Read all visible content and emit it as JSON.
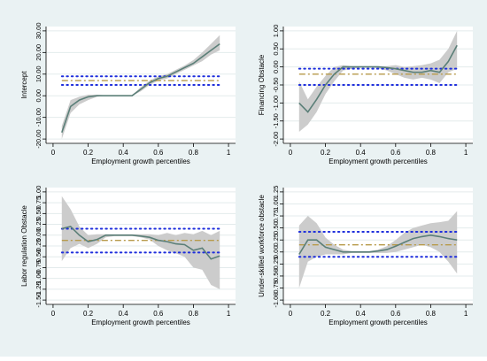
{
  "chart_data": [
    {
      "type": "line",
      "title": "",
      "xlabel": "Employment growth percentiles",
      "ylabel": "Intercept",
      "xlim": [
        0,
        1
      ],
      "ylim": [
        -20,
        30
      ],
      "xticks": [
        0,
        0.2,
        0.4,
        0.6,
        0.8,
        1
      ],
      "xtick_labels": [
        "0",
        "0.2",
        "0.4",
        "0.6",
        "0.8",
        "1"
      ],
      "yticks": [
        -20,
        -10,
        0,
        10,
        20,
        30
      ],
      "ytick_labels": [
        "-20.00",
        "-10.00",
        "0.00",
        "10.00",
        "20.00",
        "30.00"
      ],
      "x": [
        0.05,
        0.1,
        0.15,
        0.2,
        0.25,
        0.3,
        0.35,
        0.4,
        0.45,
        0.5,
        0.55,
        0.6,
        0.65,
        0.7,
        0.75,
        0.8,
        0.85,
        0.9,
        0.95
      ],
      "estimate": [
        -17,
        -5,
        -2,
        -0.5,
        0,
        0,
        0,
        0,
        0,
        3,
        6,
        8,
        9,
        11,
        13,
        15,
        18,
        21,
        24
      ],
      "ci_lower": [
        -20,
        -8,
        -4,
        -2,
        -0.5,
        0,
        0,
        0,
        0,
        2,
        5,
        7,
        8,
        10,
        12,
        14,
        16,
        19,
        21
      ],
      "ci_upper": [
        -14,
        -2,
        -0.5,
        0.5,
        0.5,
        0.2,
        0.2,
        0.2,
        0.2,
        4,
        7,
        9,
        10,
        12,
        14,
        16.5,
        20,
        24,
        28
      ],
      "ols_estimate": 7,
      "ols_lower": 5,
      "ols_upper": 9,
      "grid": true
    },
    {
      "type": "line",
      "title": "",
      "xlabel": "Employment growth percentiles",
      "ylabel": "Financing Obstacle",
      "xlim": [
        0,
        1
      ],
      "ylim": [
        -2,
        1
      ],
      "xticks": [
        0,
        0.2,
        0.4,
        0.6,
        0.8,
        1
      ],
      "xtick_labels": [
        "0",
        "0.2",
        "0.4",
        "0.6",
        "0.8",
        "1"
      ],
      "yticks": [
        -2,
        -1.5,
        -1,
        -0.5,
        0,
        0.5,
        1
      ],
      "ytick_labels": [
        "-2.00",
        "-1.50",
        "-1.00",
        "-0.50",
        "0.00",
        "0.50",
        "1.00"
      ],
      "x": [
        0.05,
        0.1,
        0.15,
        0.2,
        0.25,
        0.3,
        0.35,
        0.4,
        0.45,
        0.5,
        0.55,
        0.6,
        0.65,
        0.7,
        0.75,
        0.8,
        0.85,
        0.9,
        0.95
      ],
      "estimate": [
        -1.0,
        -1.25,
        -0.9,
        -0.5,
        -0.2,
        0,
        0,
        0,
        0,
        0,
        -0.02,
        -0.05,
        -0.1,
        -0.15,
        -0.15,
        -0.1,
        -0.15,
        0.15,
        0.6
      ],
      "ci_lower": [
        -1.8,
        -1.6,
        -1.25,
        -0.75,
        -0.4,
        -0.1,
        -0.05,
        -0.02,
        -0.02,
        -0.03,
        -0.1,
        -0.2,
        -0.3,
        -0.35,
        -0.3,
        -0.35,
        -0.45,
        -0.15,
        -0.05
      ],
      "ci_upper": [
        -0.4,
        -0.9,
        -0.55,
        -0.25,
        0,
        0.05,
        0.02,
        0.02,
        0.02,
        0.02,
        0.02,
        0.05,
        0,
        0.02,
        0.05,
        0.1,
        0.2,
        0.5,
        1.0
      ],
      "ols_estimate": -0.2,
      "ols_lower": -0.5,
      "ols_upper": -0.05,
      "grid": true
    },
    {
      "type": "line",
      "title": "",
      "xlabel": "Employment growth percentiles",
      "ylabel": "Labor regulation Obstacle",
      "xlim": [
        0,
        1
      ],
      "ylim": [
        -1.5,
        1
      ],
      "xticks": [
        0,
        0.2,
        0.4,
        0.6,
        0.8,
        1
      ],
      "xtick_labels": [
        "0",
        "0.2",
        "0.4",
        "0.6",
        "0.8",
        "1"
      ],
      "yticks": [
        -1.5,
        -1.25,
        -1,
        -0.75,
        -0.5,
        -0.25,
        0,
        0.25,
        0.5,
        0.75,
        1
      ],
      "ytick_labels": [
        "-1.50",
        "-1.25",
        "-1.00",
        "-0.75",
        "-0.50",
        "-0.25",
        "0.00",
        "0.25",
        "0.50",
        "0.75",
        "1.00"
      ],
      "x": [
        0.05,
        0.1,
        0.15,
        0.2,
        0.25,
        0.3,
        0.35,
        0.4,
        0.45,
        0.5,
        0.55,
        0.6,
        0.65,
        0.7,
        0.75,
        0.8,
        0.85,
        0.9,
        0.95
      ],
      "estimate": [
        0.15,
        0.2,
        0,
        -0.15,
        -0.1,
        0,
        0,
        0,
        0,
        -0.02,
        -0.05,
        -0.12,
        -0.15,
        -0.2,
        -0.22,
        -0.35,
        -0.3,
        -0.55,
        -0.48
      ],
      "ci_lower": [
        -0.6,
        -0.3,
        -0.2,
        -0.3,
        -0.2,
        -0.05,
        -0.02,
        -0.02,
        -0.02,
        -0.05,
        -0.1,
        -0.25,
        -0.35,
        -0.42,
        -0.5,
        -0.75,
        -0.8,
        -1.15,
        -1.25
      ],
      "ci_upper": [
        0.9,
        0.6,
        0.2,
        0,
        0.02,
        0.02,
        0.02,
        0.02,
        0.02,
        0.02,
        0.02,
        0,
        0.05,
        0,
        0.05,
        0.02,
        0.1,
        0,
        0.1
      ],
      "ols_estimate": -0.12,
      "ols_lower": -0.4,
      "ols_upper": 0.15,
      "grid": true
    },
    {
      "type": "line",
      "title": "",
      "xlabel": "Employment growth percentiles",
      "ylabel": "Under-skilled workforce obstacle",
      "xlim": [
        0,
        1
      ],
      "ylim": [
        -1,
        1.25
      ],
      "xticks": [
        0,
        0.2,
        0.4,
        0.6,
        0.8,
        1
      ],
      "xtick_labels": [
        "0",
        "0.2",
        "0.4",
        "0.6",
        "0.8",
        "1"
      ],
      "yticks": [
        -1,
        -0.75,
        -0.5,
        -0.25,
        0,
        0.25,
        0.5,
        0.75,
        1,
        1.25
      ],
      "ytick_labels": [
        "-1.00",
        "-0.75",
        "-0.50",
        "-0.25",
        "0.00",
        "0.25",
        "0.50",
        "0.75",
        "1.00",
        "1.25"
      ],
      "x": [
        0.05,
        0.1,
        0.15,
        0.2,
        0.25,
        0.3,
        0.35,
        0.4,
        0.45,
        0.5,
        0.55,
        0.6,
        0.65,
        0.7,
        0.75,
        0.8,
        0.85,
        0.9,
        0.95
      ],
      "estimate": [
        -0.05,
        0.25,
        0.25,
        0.1,
        0.05,
        0,
        0,
        0,
        0,
        0.02,
        0.05,
        0.12,
        0.2,
        0.28,
        0.32,
        0.35,
        0.32,
        0.28,
        0.25
      ],
      "ci_lower": [
        -0.75,
        -0.2,
        -0.1,
        -0.05,
        -0.05,
        -0.05,
        -0.02,
        -0.02,
        -0.02,
        -0.02,
        -0.02,
        0,
        0.05,
        0.1,
        0.15,
        0.1,
        0,
        -0.2,
        -0.45
      ],
      "ci_upper": [
        0.55,
        0.75,
        0.6,
        0.3,
        0.15,
        0.05,
        0.02,
        0.02,
        0.02,
        0.05,
        0.12,
        0.25,
        0.4,
        0.5,
        0.55,
        0.6,
        0.62,
        0.65,
        0.85
      ],
      "ols_estimate": 0.15,
      "ols_lower": -0.1,
      "ols_upper": 0.42,
      "grid": true
    }
  ],
  "colors": {
    "background": "#eaf2f3",
    "plot_background": "#ffffff",
    "estimate_line": "#5b7f78",
    "ci_band": "#cccccc",
    "ols_estimate_line": "#b79a4a",
    "ols_ci_dots": "#1f2fdc",
    "grid": "#e3ebec"
  }
}
